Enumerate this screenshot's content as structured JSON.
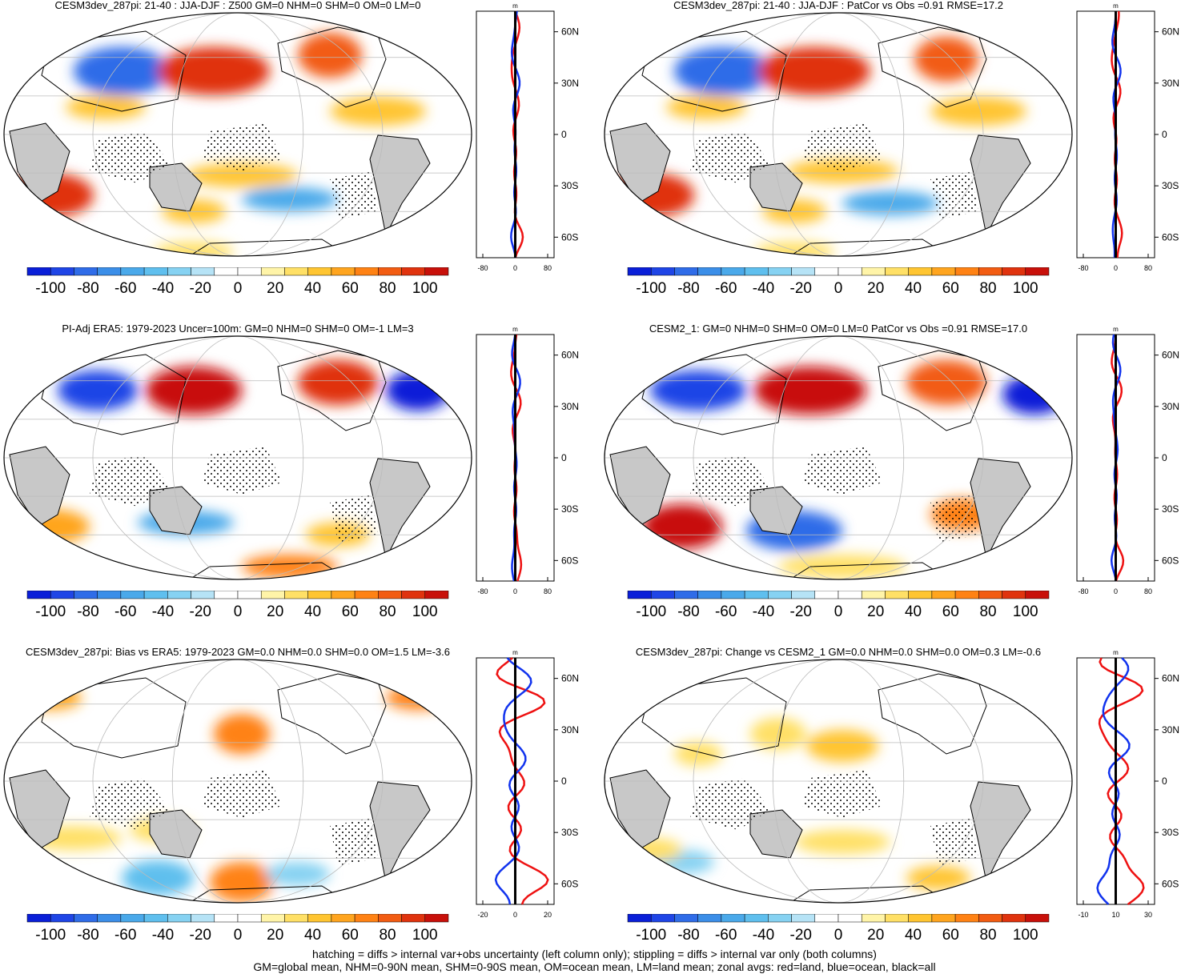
{
  "colorbar": {
    "ticks": [
      "-100",
      "-80",
      "-60",
      "-40",
      "-20",
      "0",
      "20",
      "40",
      "60",
      "80",
      "100"
    ],
    "colors": [
      "#0a1fd8",
      "#1f45e6",
      "#2f6ce8",
      "#3b8ee8",
      "#4aa9ea",
      "#5fbfee",
      "#86d2f2",
      "#b6e3f6",
      "#ffffff",
      "#ffffff",
      "#fff4a8",
      "#ffe066",
      "#ffc531",
      "#ffa51f",
      "#ff8214",
      "#f25c12",
      "#e0330e",
      "#c8100a"
    ]
  },
  "zonal_units": "m",
  "lat_labels": [
    "60N",
    "30N",
    "0",
    "30S",
    "60S"
  ],
  "series_colors": {
    "land": "#ee1111",
    "ocean": "#1133ee",
    "all": "#000000"
  },
  "panels": [
    {
      "title": "CESM3dev_287pi: 21-40 : JJA-DJF : Z500 GM=0 NHM=0 SHM=0 OM=0 LM=0",
      "zonal_ticks": [
        "-80",
        "0",
        "80"
      ]
    },
    {
      "title": "CESM3dev_287pi: 21-40 : JJA-DJF : PatCor vs Obs =0.91 RMSE=17.2",
      "zonal_ticks": [
        "-80",
        "0",
        "80"
      ]
    },
    {
      "title": "PI-Adj ERA5: 1979-2023 Uncer=100m: GM=0 NHM=0 SHM=0 OM=-1 LM=3",
      "zonal_ticks": [
        "-80",
        "0",
        "80"
      ]
    },
    {
      "title": "CESM2_1: GM=0 NHM=0 SHM=0 OM=0 LM=0 PatCor vs Obs =0.91 RMSE=17.0",
      "zonal_ticks": [
        "-80",
        "0",
        "80"
      ]
    },
    {
      "title": "CESM3dev_287pi: Bias vs ERA5: 1979-2023 GM=0.0 NHM=0.0 SHM=0.0 OM=1.5 LM=-3.6",
      "zonal_ticks": [
        "-20",
        "0",
        "20"
      ]
    },
    {
      "title": "CESM3dev_287pi: Change vs CESM2_1 GM=0.0 NHM=0.0 SHM=0.0 OM=0.3 LM=-0.6",
      "zonal_ticks": [
        "-10",
        "10",
        "30"
      ]
    }
  ],
  "chart_data": {
    "type": "heatmap",
    "variable": "Z500",
    "colorbar_range": [
      -100,
      100
    ],
    "zonal_axis_lats": [
      "60N",
      "30N",
      "0",
      "30S",
      "60S"
    ],
    "panels_summary": [
      {
        "panel": 1,
        "zonal_xlim": [
          -80,
          80
        ]
      },
      {
        "panel": 2,
        "zonal_xlim": [
          -80,
          80
        ]
      },
      {
        "panel": 3,
        "zonal_xlim": [
          -80,
          80
        ]
      },
      {
        "panel": 4,
        "zonal_xlim": [
          -80,
          80
        ]
      },
      {
        "panel": 5,
        "zonal_xlim": [
          -20,
          20
        ]
      },
      {
        "panel": 6,
        "zonal_xlim": [
          -10,
          30
        ]
      }
    ]
  },
  "footer": {
    "line1": "hatching = diffs > internal var+obs uncertainty (left column only); stippling = diffs > internal var only (both columns)",
    "line2": "GM=global mean, NHM=0-90N mean, SHM=0-90S mean, OM=ocean mean, LM=land mean; zonal avgs: red=land, blue=ocean, black=all"
  }
}
